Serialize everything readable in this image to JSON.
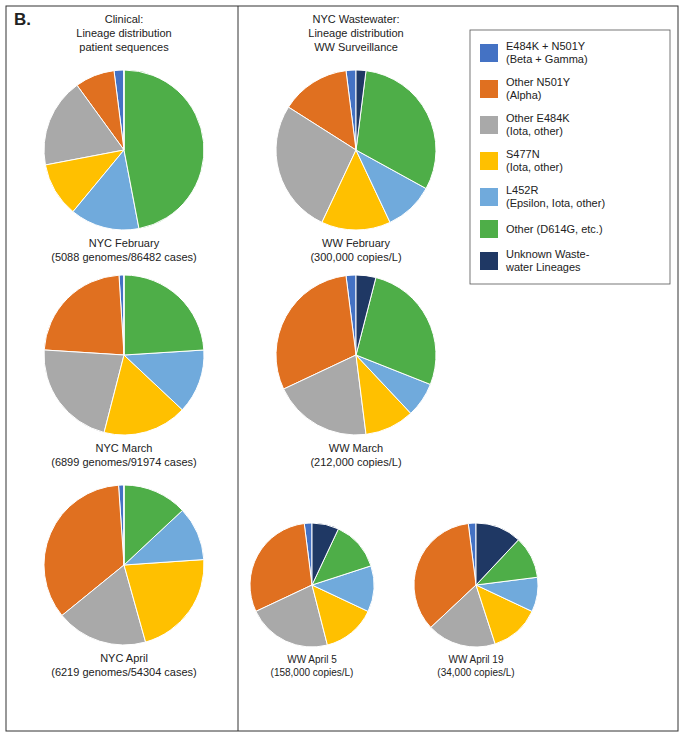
{
  "chart_data": [
    {
      "type": "pie",
      "title": "NYC February\n(5088 genomes/86482 cases)",
      "categories": [
        "E484K + N501Y\n(Beta + Gamma)",
        "Other N501Y\n(Alpha)",
        "Other E484K\n(Iota, other)",
        "S477N\n(Iota, other)",
        "L452R\n(Epsilon, Iota, other)",
        "Other (D614G, etc.)",
        "Unknown Waste-\nwater Lineages"
      ],
      "values": [
        2,
        8,
        18,
        11,
        14,
        47,
        0
      ],
      "colors": [
        "#4472C4",
        "#E07020",
        "#A9A9A9",
        "#FFC000",
        "#70AADC",
        "#4EAE48",
        "#1F3864"
      ],
      "legend": "upper right",
      "annotations": [
        "B.",
        "Clinical:\nLineage distribution\npatient sequences",
        "NYC Wastewater:\nLineage distribution\nWW Surveillance"
      ]
    },
    {
      "type": "pie",
      "title": "NYC March\n(6899 genomes/91974 cases)",
      "values": [
        1,
        23,
        22,
        17,
        13,
        24,
        0
      ],
      "colors": [
        "#4472C4",
        "#E07020",
        "#A9A9A9",
        "#FFC000",
        "#70AADC",
        "#4EAE48",
        "#1F3864"
      ]
    },
    {
      "type": "pie",
      "title": "NYC April\n(6219 genomes/54304 cases)",
      "values": [
        1,
        32,
        17,
        20,
        10,
        12,
        0
      ],
      "colors": [
        "#4472C4",
        "#E07020",
        "#A9A9A9",
        "#FFC000",
        "#70AADC",
        "#4EAE48",
        "#1F3864"
      ]
    },
    {
      "type": "pie",
      "title": "WW February\n(300,000 copies/L)",
      "values": [
        2,
        14,
        27,
        14,
        10,
        31,
        2
      ],
      "colors": [
        "#4472C4",
        "#E07020",
        "#A9A9A9",
        "#FFC000",
        "#70AADC",
        "#4EAE48",
        "#1F3864"
      ]
    },
    {
      "type": "pie",
      "title": "WW March\n(212,000 copies/L)",
      "values": [
        2,
        30,
        20,
        10,
        7,
        27,
        4
      ],
      "colors": [
        "#4472C4",
        "#E07020",
        "#A9A9A9",
        "#FFC000",
        "#70AADC",
        "#4EAE48",
        "#1F3864"
      ]
    },
    {
      "type": "pie",
      "title": "WW April 5\n(158,000 copies/L)",
      "values": [
        2,
        30,
        22,
        14,
        12,
        13,
        7
      ],
      "colors": [
        "#4472C4",
        "#E07020",
        "#A9A9A9",
        "#FFC000",
        "#70AADC",
        "#4EAE48",
        "#1F3864"
      ]
    },
    {
      "type": "pie",
      "title": "WW April 19\n(34,000 copies/L)",
      "values": [
        2,
        35,
        18,
        13,
        9,
        11,
        12
      ],
      "colors": [
        "#4472C4",
        "#E07020",
        "#A9A9A9",
        "#FFC000",
        "#70AADC",
        "#4EAE48",
        "#1F3864"
      ]
    }
  ]
}
